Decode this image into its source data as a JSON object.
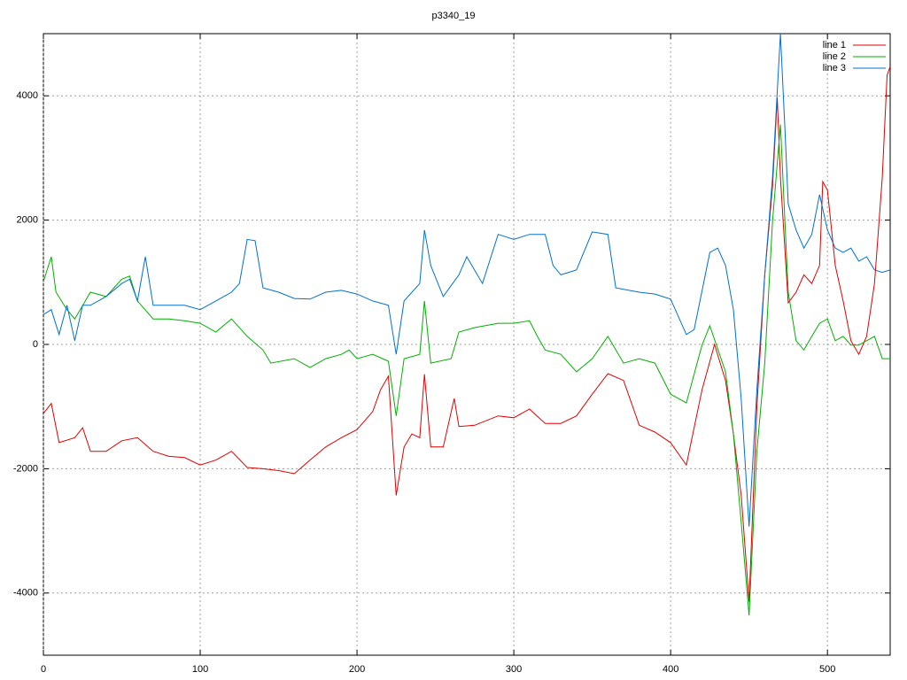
{
  "chart_data": {
    "type": "line",
    "title": "p3340_19",
    "xlim": [
      0,
      540
    ],
    "xticks": [
      0,
      100,
      200,
      300,
      400,
      500
    ],
    "ylim": [
      -5000,
      5000
    ],
    "yticks": [
      -4000,
      -2000,
      0,
      2000,
      4000
    ],
    "grid": true,
    "legend": "top-right",
    "series": [
      {
        "name": "line 1",
        "color": "#e00000",
        "x": [
          0,
          5,
          10,
          20,
          25,
          30,
          40,
          50,
          60,
          70,
          80,
          90,
          100,
          110,
          120,
          130,
          140,
          150,
          160,
          170,
          180,
          190,
          200,
          210,
          215,
          220,
          225,
          230,
          235,
          240,
          243,
          247,
          255,
          262,
          265,
          275,
          290,
          300,
          310,
          320,
          330,
          340,
          350,
          360,
          370,
          380,
          390,
          400,
          410,
          420,
          428,
          435,
          440,
          445,
          450,
          455,
          460,
          465,
          468,
          470,
          475,
          480,
          485,
          490,
          495,
          497,
          500,
          505,
          510,
          515,
          520,
          525,
          530,
          535,
          538,
          540
        ],
        "values": [
          -1110,
          -950,
          -1580,
          -1500,
          -1340,
          -1720,
          -1720,
          -1550,
          -1500,
          -1720,
          -1800,
          -1820,
          -1940,
          -1860,
          -1720,
          -1980,
          -2000,
          -2030,
          -2080,
          -1860,
          -1650,
          -1500,
          -1370,
          -1080,
          -730,
          -510,
          -2430,
          -1650,
          -1440,
          -1500,
          -480,
          -1650,
          -1650,
          -870,
          -1320,
          -1300,
          -1150,
          -1180,
          -1040,
          -1270,
          -1270,
          -1150,
          -800,
          -470,
          -580,
          -1300,
          -1410,
          -1580,
          -1940,
          -730,
          0,
          -580,
          -1440,
          -2430,
          -4140,
          -1010,
          1120,
          2550,
          3970,
          2690,
          670,
          840,
          1120,
          980,
          1270,
          2620,
          2480,
          1270,
          700,
          60,
          -160,
          130,
          980,
          2690,
          4330,
          4470
        ]
      },
      {
        "name": "line 2",
        "color": "#00b000",
        "x": [
          0,
          5,
          8,
          15,
          20,
          30,
          40,
          50,
          55,
          60,
          70,
          80,
          90,
          100,
          110,
          120,
          130,
          140,
          145,
          160,
          170,
          180,
          190,
          195,
          200,
          210,
          220,
          225,
          230,
          240,
          243,
          247,
          260,
          265,
          275,
          290,
          300,
          310,
          315,
          320,
          330,
          340,
          350,
          360,
          370,
          380,
          390,
          400,
          410,
          420,
          425,
          435,
          440,
          445,
          450,
          455,
          460,
          465,
          470,
          475,
          480,
          485,
          490,
          495,
          500,
          505,
          510,
          515,
          520,
          530,
          535,
          540
        ],
        "values": [
          1010,
          1410,
          840,
          560,
          410,
          840,
          770,
          1050,
          1100,
          700,
          410,
          410,
          380,
          340,
          200,
          410,
          130,
          -90,
          -300,
          -230,
          -370,
          -230,
          -160,
          -90,
          -230,
          -160,
          -270,
          -1150,
          -230,
          -160,
          700,
          -300,
          -230,
          200,
          270,
          340,
          340,
          380,
          130,
          -90,
          -160,
          -440,
          -230,
          130,
          -300,
          -230,
          -300,
          -800,
          -940,
          -10,
          300,
          -440,
          -1440,
          -2860,
          -4360,
          -1720,
          -300,
          1980,
          3540,
          840,
          60,
          -90,
          130,
          340,
          410,
          60,
          130,
          -10,
          -10,
          130,
          -230,
          -230
        ]
      },
      {
        "name": "line 3",
        "color": "#0070d0",
        "x": [
          0,
          5,
          10,
          15,
          20,
          25,
          30,
          40,
          50,
          55,
          60,
          65,
          70,
          80,
          90,
          100,
          110,
          120,
          125,
          130,
          135,
          140,
          150,
          160,
          170,
          180,
          190,
          200,
          210,
          220,
          225,
          230,
          240,
          243,
          247,
          255,
          265,
          270,
          280,
          290,
          300,
          310,
          320,
          325,
          330,
          340,
          350,
          360,
          365,
          380,
          390,
          400,
          410,
          415,
          425,
          430,
          435,
          440,
          445,
          450,
          455,
          460,
          465,
          470,
          473,
          475,
          480,
          485,
          490,
          495,
          500,
          505,
          510,
          515,
          520,
          525,
          530,
          535,
          540
        ],
        "values": [
          480,
          560,
          160,
          630,
          60,
          630,
          630,
          770,
          980,
          1050,
          700,
          1410,
          630,
          630,
          630,
          560,
          700,
          840,
          980,
          1690,
          1670,
          910,
          840,
          740,
          730,
          840,
          870,
          810,
          700,
          630,
          -160,
          700,
          980,
          1840,
          1270,
          770,
          1120,
          1410,
          980,
          1770,
          1690,
          1770,
          1770,
          1270,
          1120,
          1200,
          1810,
          1770,
          910,
          840,
          810,
          730,
          160,
          240,
          1480,
          1550,
          1270,
          560,
          -870,
          -2930,
          -730,
          1120,
          2690,
          5000,
          3400,
          2260,
          1840,
          1550,
          1770,
          2410,
          1840,
          1550,
          1480,
          1550,
          1340,
          1410,
          1200,
          1160,
          1200
        ]
      }
    ]
  }
}
